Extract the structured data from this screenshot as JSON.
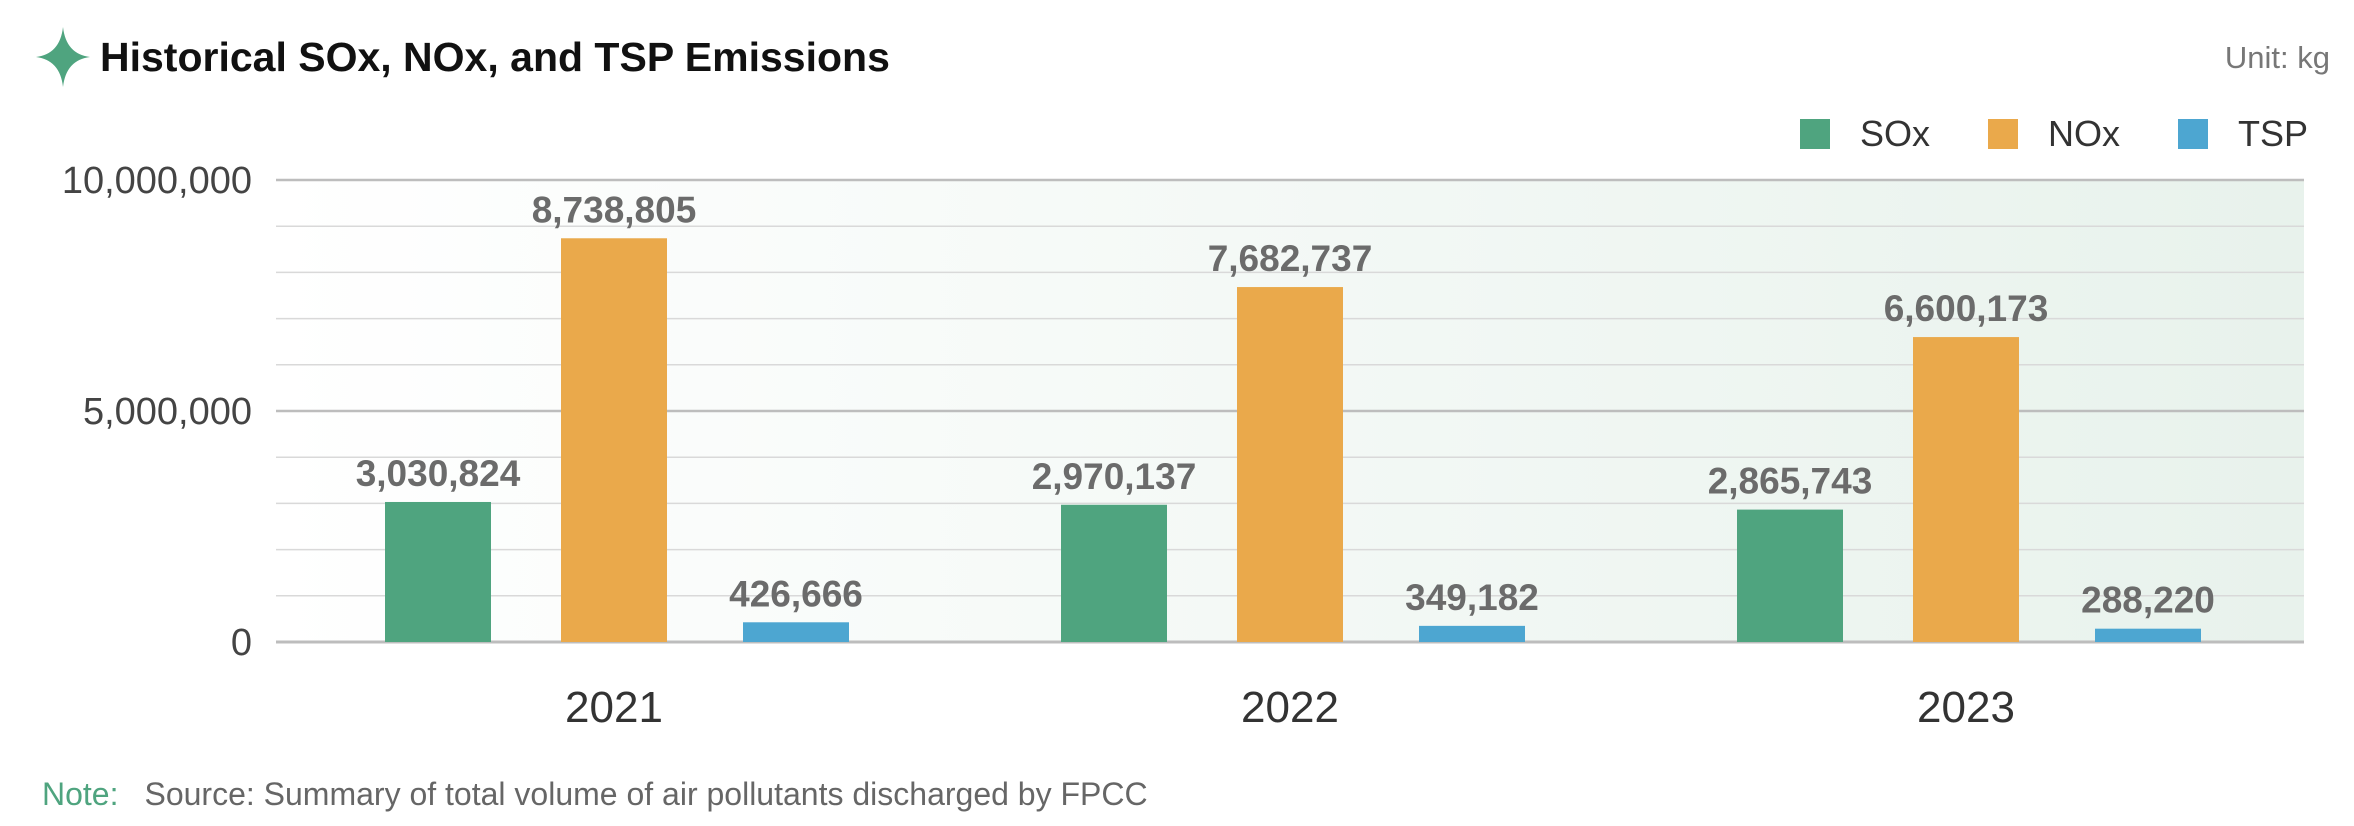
{
  "header": {
    "title": "Historical SOx, NOx, and TSP Emissions",
    "unit": "Unit: kg",
    "icon": "sparkle-star-icon"
  },
  "note": {
    "label": "Note:",
    "text": "Source: Summary of total volume of air pollutants discharged by FPCC"
  },
  "colors": {
    "accent": "#4fa47f",
    "SOx": "#4fa47f",
    "NOx": "#eaa94b",
    "TSP": "#4da6d1"
  },
  "chart_data": {
    "type": "bar",
    "title": "Historical SOx, NOx, and TSP Emissions",
    "xlabel": "",
    "ylabel": "",
    "unit": "kg",
    "categories": [
      "2021",
      "2022",
      "2023"
    ],
    "series": [
      {
        "name": "SOx",
        "values": [
          3030824,
          2970137,
          2865743
        ],
        "labels": [
          "3,030,824",
          "2,970,137",
          "2,865,743"
        ],
        "color": "#4fa47f"
      },
      {
        "name": "NOx",
        "values": [
          8738805,
          7682737,
          6600173
        ],
        "labels": [
          "8,738,805",
          "7,682,737",
          "6,600,173"
        ],
        "color": "#eaa94b"
      },
      {
        "name": "TSP",
        "values": [
          426666,
          349182,
          288220
        ],
        "labels": [
          "426,666",
          "349,182",
          "288,220"
        ],
        "color": "#4da6d1"
      }
    ],
    "yticks": [
      {
        "value": 0,
        "label": "0"
      },
      {
        "value": 5000000,
        "label": "5,000,000"
      },
      {
        "value": 10000000,
        "label": "10,000,000"
      }
    ],
    "ylim": [
      0,
      10000000
    ],
    "grid": true,
    "legend": "top-right"
  }
}
